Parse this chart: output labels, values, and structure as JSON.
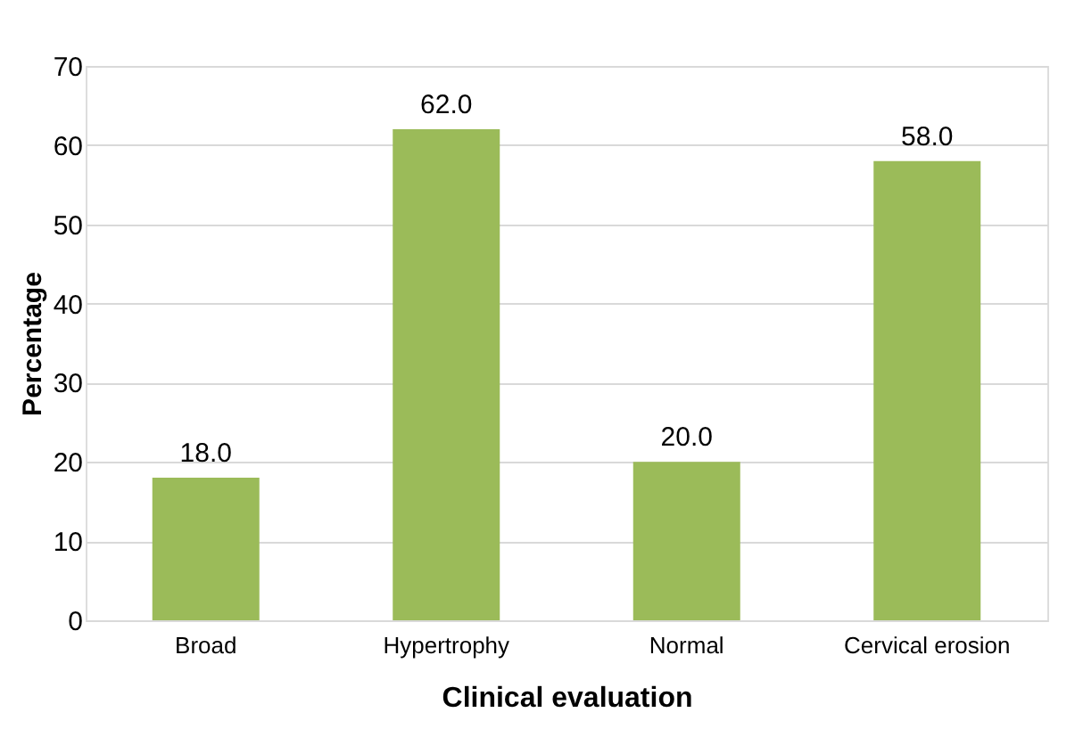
{
  "chart_data": {
    "type": "bar",
    "xlabel": "Clinical evaluation",
    "ylabel": "Percentage",
    "categories": [
      "Broad",
      "Hypertrophy",
      "Normal",
      "Cervical erosion"
    ],
    "values": [
      18.0,
      62.0,
      20.0,
      58.0
    ],
    "color": "#9bbb59",
    "value_labels": [
      "18.0",
      "62.0",
      "20.0",
      "58.0"
    ],
    "ylim": [
      0,
      70
    ],
    "yticks": [
      0,
      10,
      20,
      30,
      40,
      50,
      60,
      70
    ],
    "grid": "y"
  }
}
